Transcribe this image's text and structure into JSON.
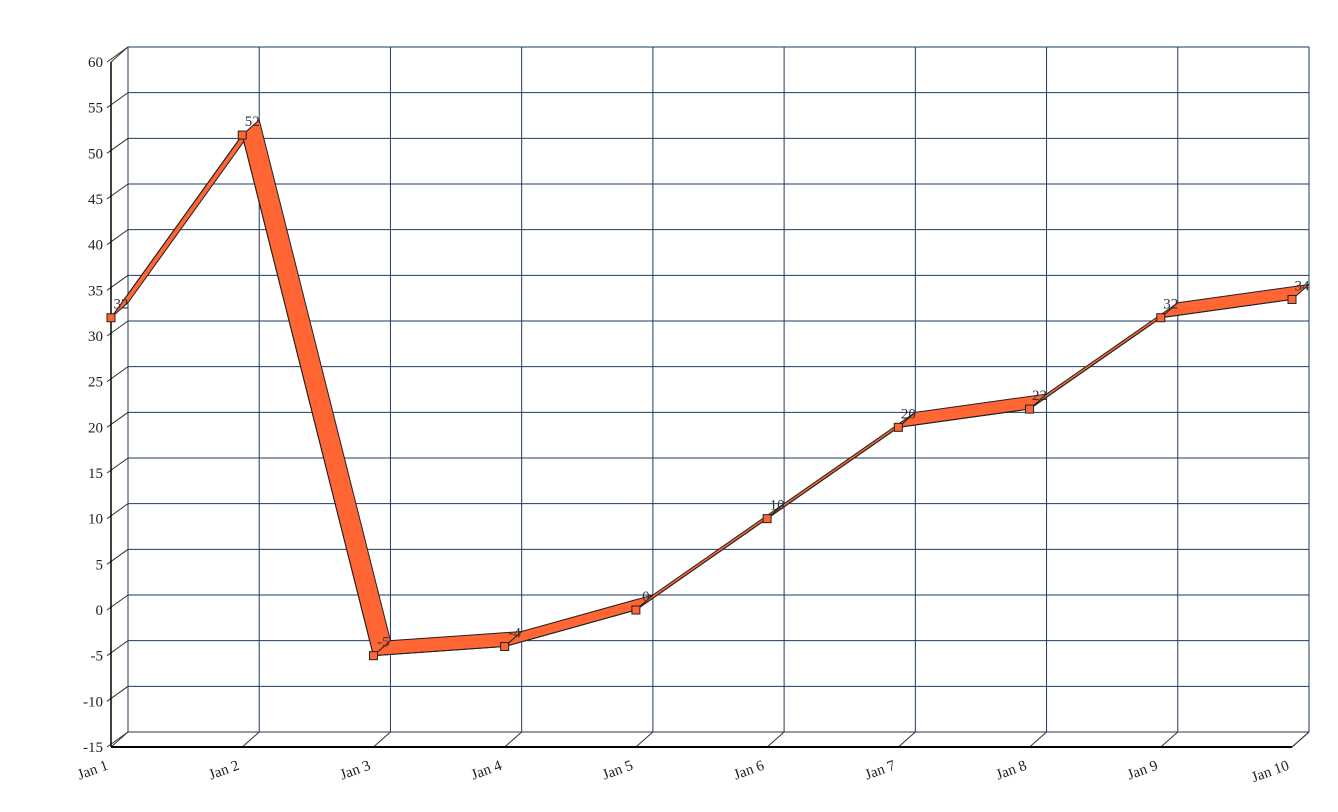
{
  "chart_data": {
    "type": "line",
    "categories": [
      "Jan 1",
      "Jan 2",
      "Jan 3",
      "Jan 4",
      "Jan 5",
      "Jan 6",
      "Jan 7",
      "Jan 8",
      "Jan 9",
      "Jan 10"
    ],
    "values": [
      32,
      52,
      -5,
      -4,
      0,
      10,
      20,
      22,
      32,
      34
    ],
    "color": "#ff6633",
    "ylim": [
      -15,
      60
    ],
    "yticks": [
      -15,
      -10,
      -5,
      0,
      5,
      10,
      15,
      20,
      25,
      30,
      35,
      40,
      45,
      50,
      55,
      60
    ],
    "grid": true
  }
}
